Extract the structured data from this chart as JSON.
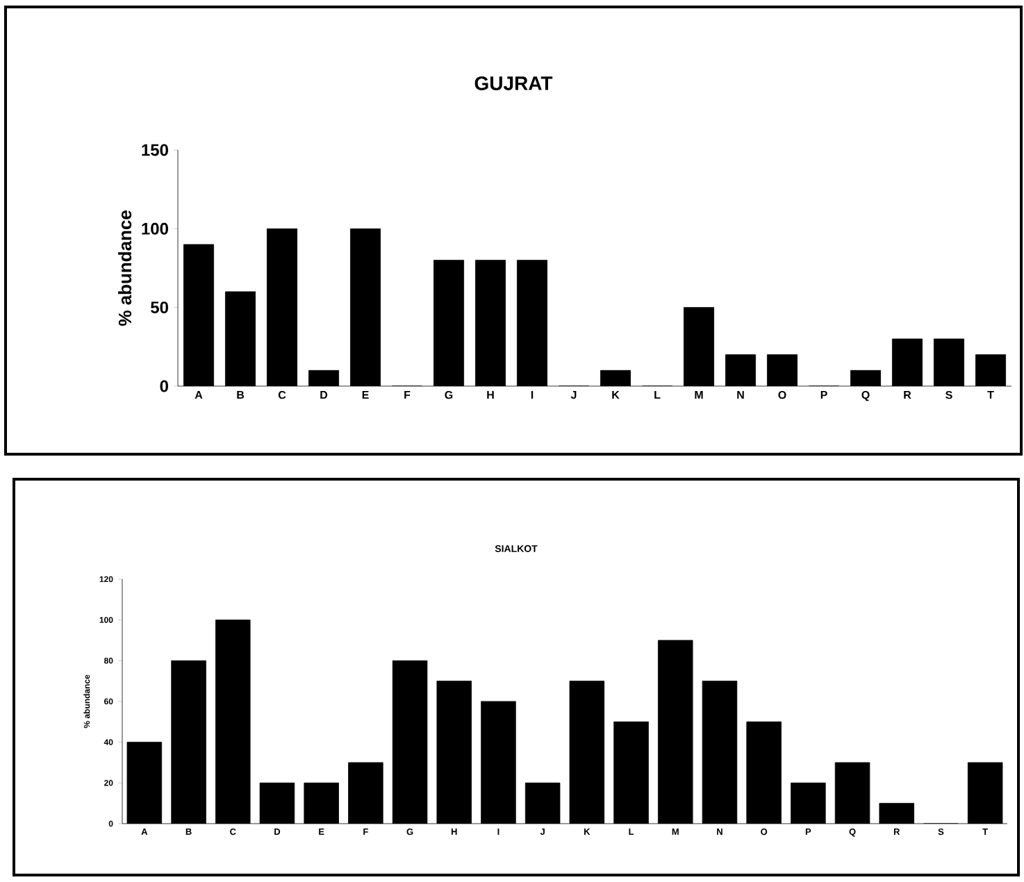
{
  "chart_data": [
    {
      "type": "bar",
      "title": "GUJRAT",
      "ylabel": "% abundance",
      "categories": [
        "A",
        "B",
        "C",
        "D",
        "E",
        "F",
        "G",
        "H",
        "I",
        "J",
        "K",
        "L",
        "M",
        "N",
        "O",
        "P",
        "Q",
        "R",
        "S",
        "T"
      ],
      "values": [
        90,
        60,
        100,
        10,
        100,
        0,
        80,
        80,
        80,
        0,
        10,
        0,
        50,
        20,
        20,
        0,
        10,
        30,
        30,
        20
      ],
      "color": "#000000",
      "ylim": [
        0,
        150
      ],
      "yticks": [
        0,
        50,
        100,
        150
      ]
    },
    {
      "type": "bar",
      "title": "SIALKOT",
      "ylabel": "% abundance",
      "categories": [
        "A",
        "B",
        "C",
        "D",
        "E",
        "F",
        "G",
        "H",
        "I",
        "J",
        "K",
        "L",
        "M",
        "N",
        "O",
        "P",
        "Q",
        "R",
        "S",
        "T"
      ],
      "values": [
        40,
        80,
        100,
        20,
        20,
        30,
        80,
        70,
        60,
        20,
        70,
        50,
        90,
        70,
        50,
        20,
        30,
        10,
        0,
        30
      ],
      "color": "#000000",
      "ylim": [
        0,
        120
      ],
      "yticks": [
        0,
        20,
        40,
        60,
        80,
        100,
        120
      ]
    }
  ]
}
